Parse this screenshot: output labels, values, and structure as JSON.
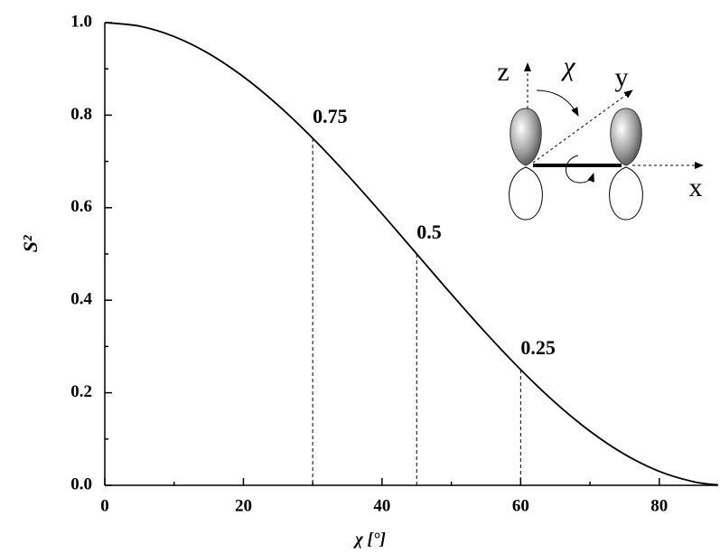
{
  "chart_data": {
    "type": "line",
    "x_label": "χ [°]",
    "y_label": "S²",
    "x": [
      0,
      5,
      10,
      15,
      20,
      25,
      30,
      35,
      40,
      45,
      50,
      55,
      60,
      65,
      70,
      75,
      80,
      85,
      88.5
    ],
    "series": [
      {
        "color": "#000000",
        "values": [
          1,
          0.9924,
          0.9698,
          0.933,
          0.883,
          0.8214,
          0.75,
          0.671,
          0.5868,
          0.5,
          0.4132,
          0.329,
          0.25,
          0.1786,
          0.117,
          0.067,
          0.0302,
          0.0076,
          0.0007
        ]
      }
    ],
    "xlim": [
      0,
      88.5
    ],
    "ylim": [
      0,
      1
    ],
    "xticks": [
      0,
      20,
      40,
      60,
      80
    ],
    "xminorticks": [
      10,
      30,
      50,
      70
    ],
    "yticks": [
      {
        "value": 0,
        "label": "0.0"
      },
      0.2,
      0.4,
      0.6,
      0.8,
      {
        "value": 1,
        "label": "1.0"
      }
    ],
    "yminorticks": [
      0.1,
      0.3,
      0.5,
      0.7,
      0.9
    ],
    "drop_lines": [
      {
        "x": 30,
        "y": 0.75
      },
      {
        "x": 45,
        "y": 0.5
      },
      {
        "x": 60,
        "y": 0.25
      }
    ],
    "inset": {
      "labels": [
        "z",
        "χ",
        "y",
        "x"
      ]
    }
  }
}
